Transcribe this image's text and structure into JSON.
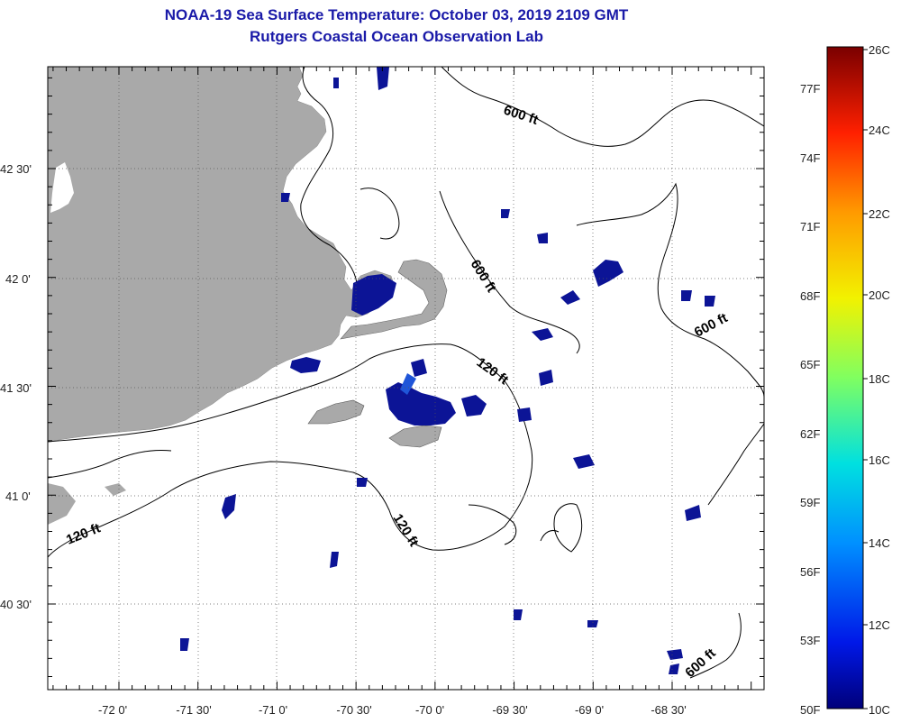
{
  "title": {
    "line1": "NOAA-19 Sea Surface Temperature:  October 03, 2019 2109 GMT",
    "line2": "Rutgers Coastal Ocean Observation Lab"
  },
  "map": {
    "lon_ticks": [
      "-72 0'",
      "-71 30'",
      "-71 0'",
      "-70 30'",
      "-70 0'",
      "-69 30'",
      "-69 0'",
      "-68 30'"
    ],
    "lat_ticks": [
      "42 30'",
      "42 0'",
      "41 30'",
      "41 0'",
      "40 30'"
    ],
    "contour_labels": [
      "600 ft",
      "600 ft",
      "600 ft",
      "600 ft",
      "120 ft",
      "120 ft",
      "120 ft"
    ],
    "colors": {
      "land": "#a9a9a9",
      "cloud": "#ffffff",
      "contour": "#000000",
      "cold_pixels": "#0c1496",
      "warm_pixels": "#1f55d8"
    }
  },
  "colorbar": {
    "celsius": [
      "26C",
      "24C",
      "22C",
      "20C",
      "18C",
      "16C",
      "14C",
      "12C",
      "10C"
    ],
    "fahrenheit": [
      "77F",
      "74F",
      "71F",
      "68F",
      "65F",
      "62F",
      "59F",
      "56F",
      "53F",
      "50F"
    ],
    "colors": [
      "#7a0000",
      "#d40000",
      "#ff4000",
      "#ff9a00",
      "#f2f200",
      "#80ff60",
      "#00e0e0",
      "#0090ff",
      "#0020ff",
      "#00007a"
    ]
  }
}
